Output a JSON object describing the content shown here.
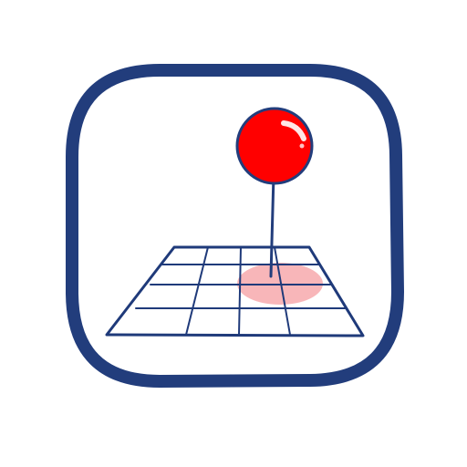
{
  "icon": {
    "name": "map-location-pin",
    "colors": {
      "frame": "#223d7c",
      "grid": "#1f3a7a",
      "pin": "#ff0000",
      "pin_outline": "#223d7c",
      "highlight": "#f7a9ad",
      "background": "#ffffff"
    }
  }
}
